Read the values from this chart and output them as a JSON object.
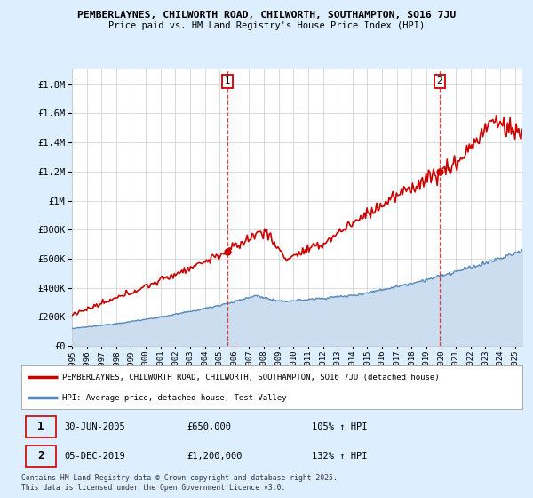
{
  "title_line1": "PEMBERLAYNES, CHILWORTH ROAD, CHILWORTH, SOUTHAMPTON, SO16 7JU",
  "title_line2": "Price paid vs. HM Land Registry's House Price Index (HPI)",
  "background_color": "#ddeeff",
  "plot_bg_color": "#ffffff",
  "grid_color": "#cccccc",
  "red_line_color": "#cc0000",
  "blue_line_color": "#5588bb",
  "blue_fill_color": "#ccddf0",
  "marker1_label": "30-JUN-2005",
  "marker1_price": "£650,000",
  "marker1_hpi": "105% ↑ HPI",
  "marker1_year": 2005.5,
  "marker1_value": 650000,
  "marker2_label": "05-DEC-2019",
  "marker2_price": "£1,200,000",
  "marker2_hpi": "132% ↑ HPI",
  "marker2_year": 2019.917,
  "marker2_value": 1200000,
  "legend_line1": "PEMBERLAYNES, CHILWORTH ROAD, CHILWORTH, SOUTHAMPTON, SO16 7JU (detached house)",
  "legend_line2": "HPI: Average price, detached house, Test Valley",
  "footer": "Contains HM Land Registry data © Crown copyright and database right 2025.\nThis data is licensed under the Open Government Licence v3.0.",
  "ylim": [
    0,
    1900000
  ],
  "yticks": [
    0,
    200000,
    400000,
    600000,
    800000,
    1000000,
    1200000,
    1400000,
    1600000,
    1800000
  ],
  "xlim_start": 1995,
  "xlim_end": 2025.5
}
